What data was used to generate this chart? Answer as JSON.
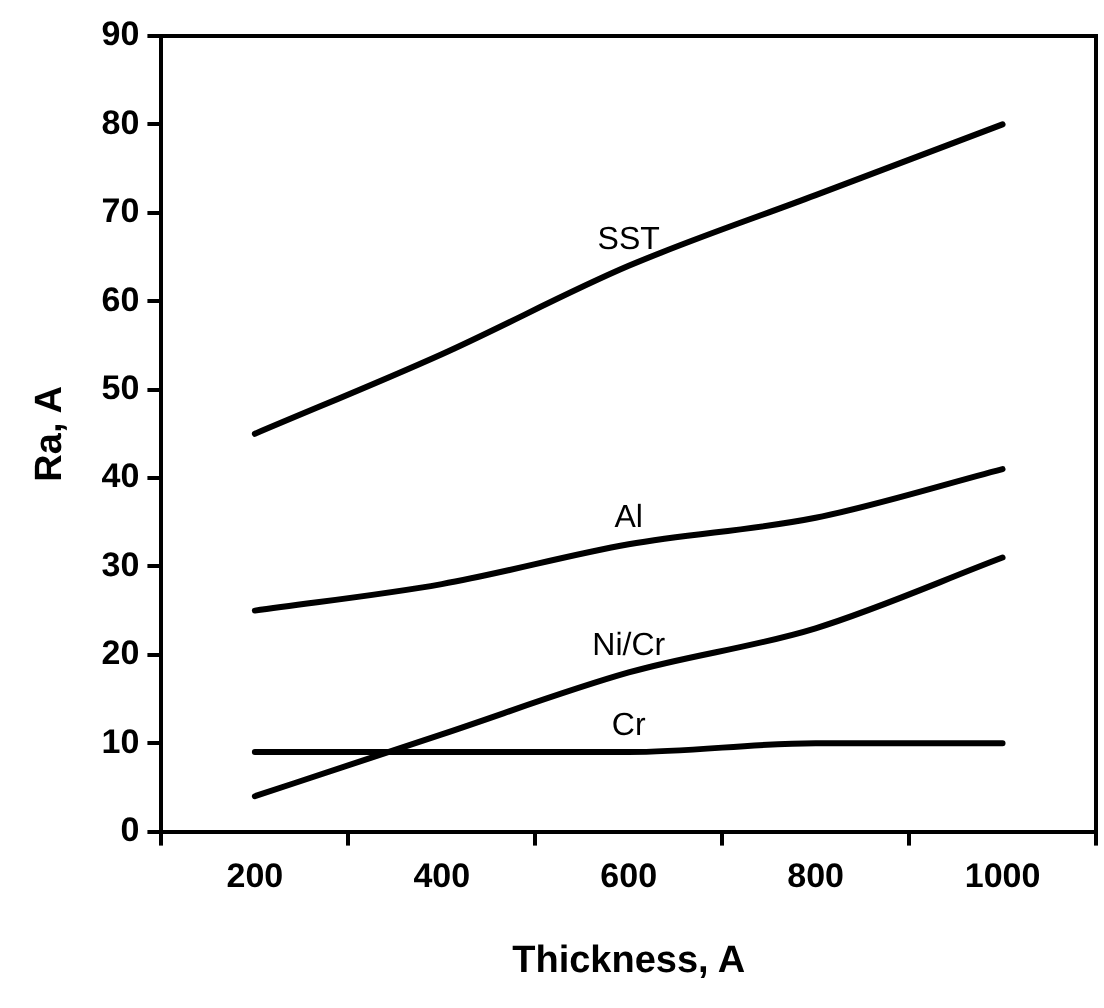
{
  "chart_data": {
    "type": "line",
    "xlabel": "Thickness, A",
    "ylabel": "Ra, A",
    "categories": [
      "200",
      "400",
      "600",
      "800",
      "1000"
    ],
    "series": [
      {
        "name": "SST",
        "color": "#000000",
        "values": [
          45,
          54,
          64,
          72,
          80
        ]
      },
      {
        "name": "Al",
        "color": "#000000",
        "values": [
          25,
          28,
          32.5,
          35.5,
          41
        ]
      },
      {
        "name": "Ni/Cr",
        "color": "#000000",
        "values": [
          4,
          11,
          18,
          23,
          31
        ]
      },
      {
        "name": "Cr",
        "color": "#000000",
        "values": [
          9,
          9,
          9,
          10,
          10
        ]
      }
    ],
    "ylim": [
      0,
      90
    ],
    "yticks": [
      0,
      10,
      20,
      30,
      40,
      50,
      60,
      70,
      80,
      90
    ],
    "grid": false,
    "legend": false,
    "marker": "none",
    "line_style": "solid"
  }
}
